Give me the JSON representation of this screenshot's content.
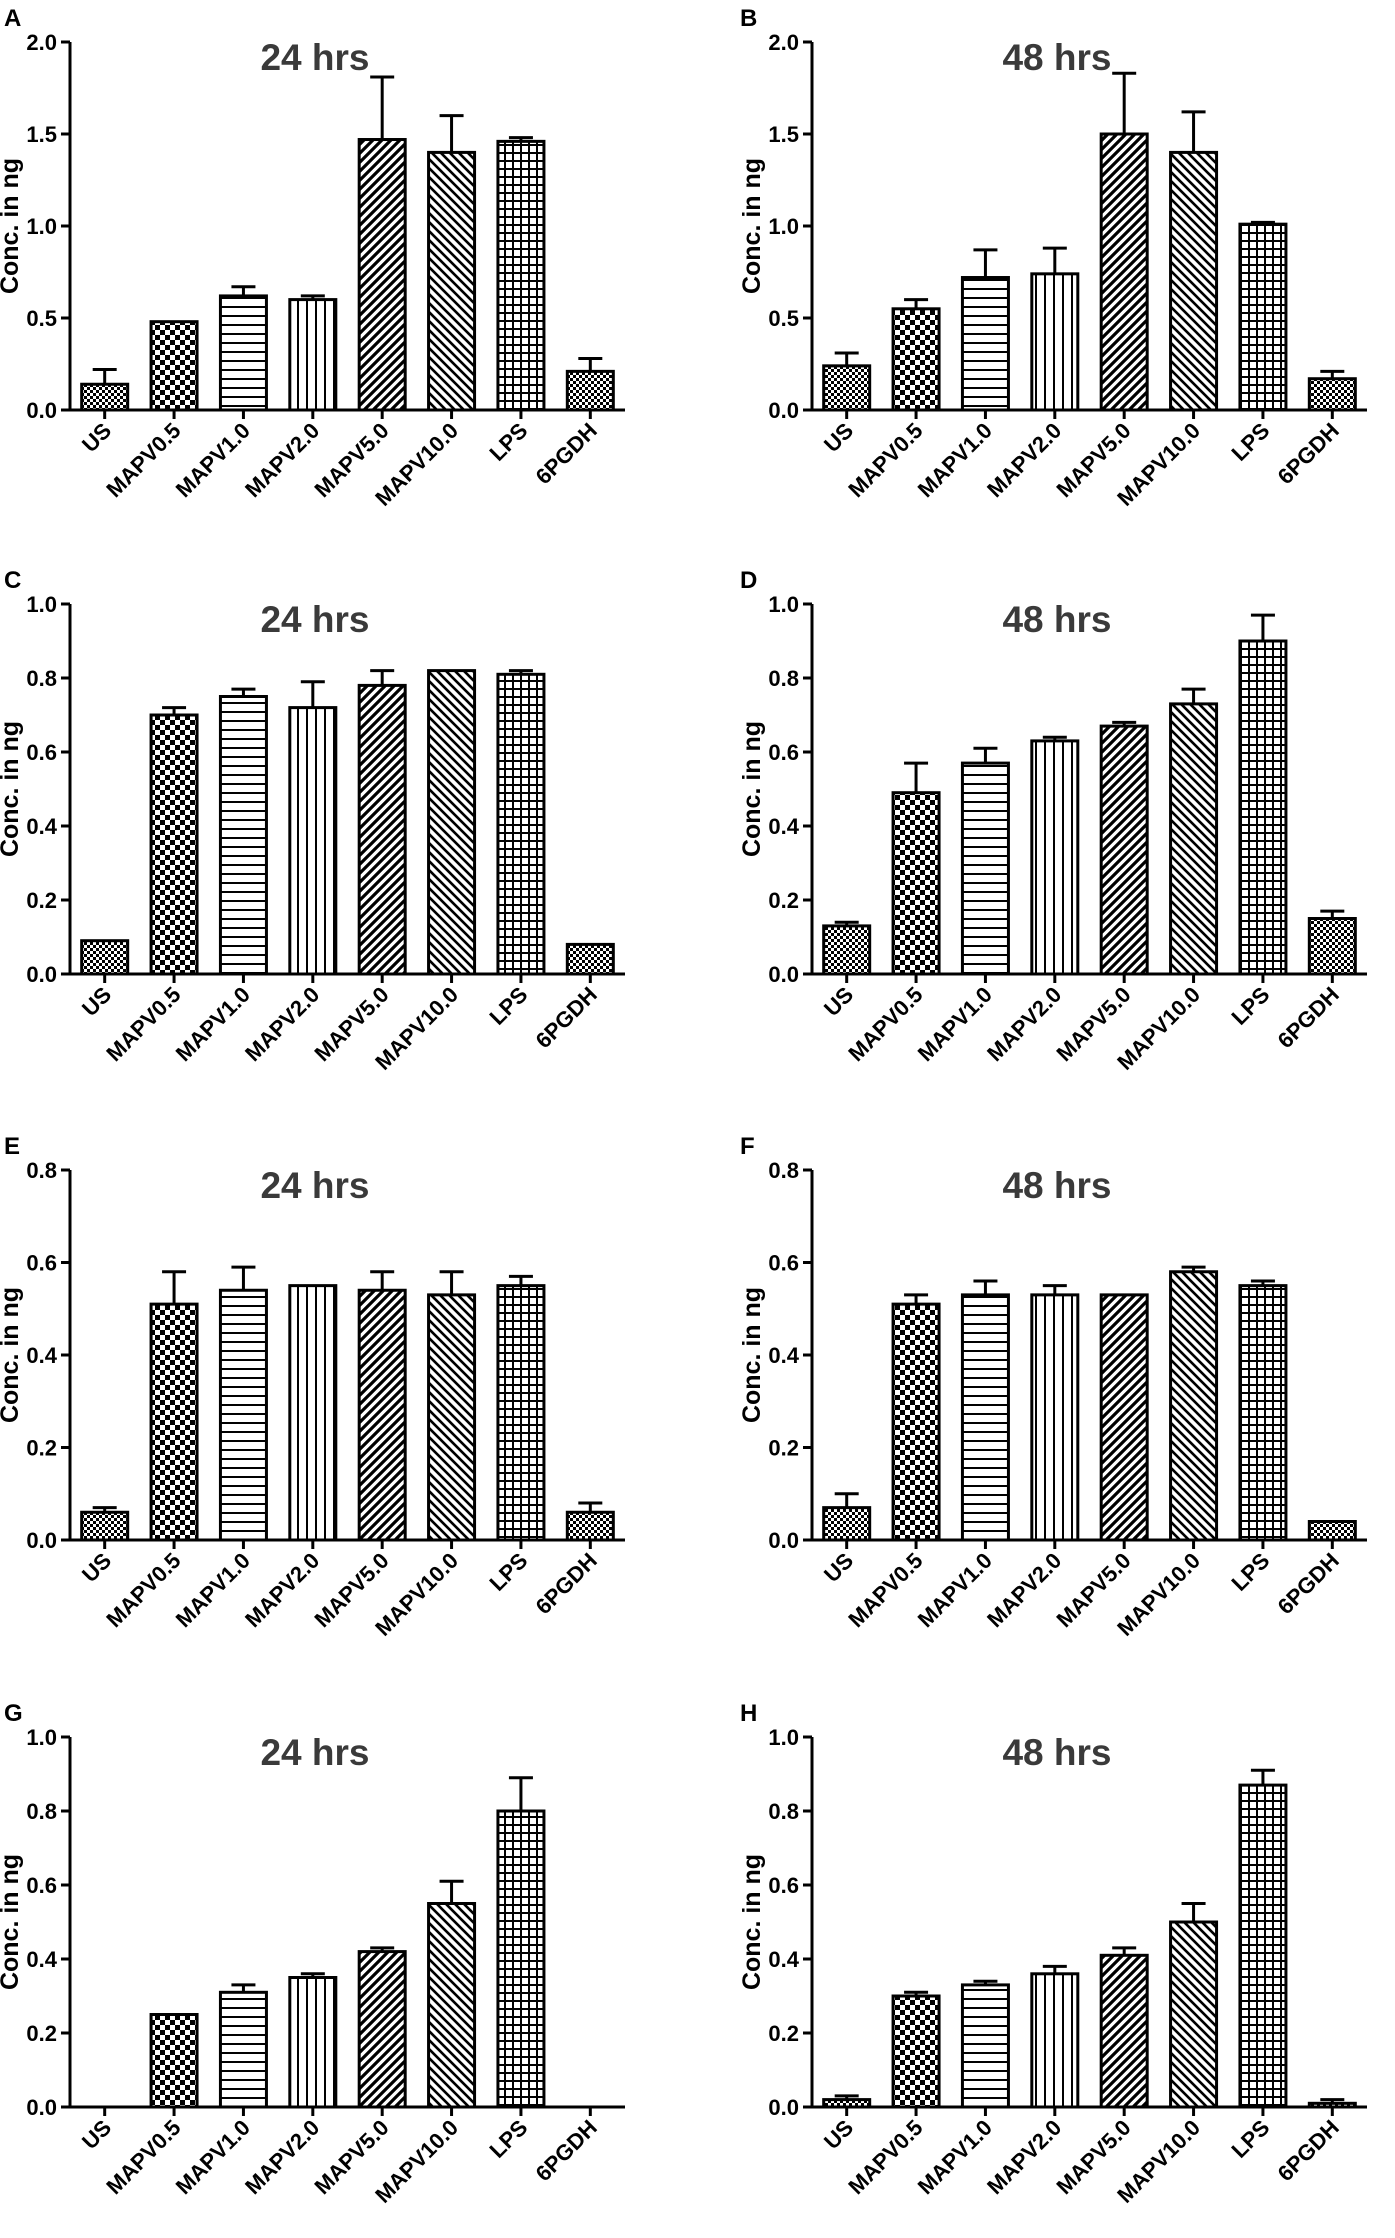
{
  "chart_data": [
    {
      "panel": "A",
      "title": "24 hrs",
      "type": "bar",
      "ylabel": "Conc. in ng",
      "ylim": [
        0,
        2.0
      ],
      "yticks": [
        "0.0",
        "0.5",
        "1.0",
        "1.5",
        "2.0"
      ],
      "categories": [
        "US",
        "MAPV0.5",
        "MAPV1.0",
        "MAPV2.0",
        "MAPV5.0",
        "MAPV10.0",
        "LPS",
        "6PGDH"
      ],
      "values": [
        0.14,
        0.48,
        0.62,
        0.6,
        1.47,
        1.4,
        1.46,
        0.21
      ],
      "errors": [
        0.08,
        0.0,
        0.05,
        0.02,
        0.34,
        0.2,
        0.02,
        0.07
      ]
    },
    {
      "panel": "B",
      "title": "48 hrs",
      "type": "bar",
      "ylabel": "Conc. in ng",
      "ylim": [
        0,
        2.0
      ],
      "yticks": [
        "0.0",
        "0.5",
        "1.0",
        "1.5",
        "2.0"
      ],
      "categories": [
        "US",
        "MAPV0.5",
        "MAPV1.0",
        "MAPV2.0",
        "MAPV5.0",
        "MAPV10.0",
        "LPS",
        "6PGDH"
      ],
      "values": [
        0.24,
        0.55,
        0.72,
        0.74,
        1.5,
        1.4,
        1.01,
        0.17
      ],
      "errors": [
        0.07,
        0.05,
        0.15,
        0.14,
        0.33,
        0.22,
        0.01,
        0.04
      ]
    },
    {
      "panel": "C",
      "title": "24 hrs",
      "type": "bar",
      "ylabel": "Conc. in ng",
      "ylim": [
        0,
        1.0
      ],
      "yticks": [
        "0.0",
        "0.2",
        "0.4",
        "0.6",
        "0.8",
        "1.0"
      ],
      "categories": [
        "US",
        "MAPV0.5",
        "MAPV1.0",
        "MAPV2.0",
        "MAPV5.0",
        "MAPV10.0",
        "LPS",
        "6PGDH"
      ],
      "values": [
        0.09,
        0.7,
        0.75,
        0.72,
        0.78,
        0.82,
        0.81,
        0.08
      ],
      "errors": [
        0.0,
        0.02,
        0.02,
        0.07,
        0.04,
        0.0,
        0.01,
        0.0
      ]
    },
    {
      "panel": "D",
      "title": "48 hrs",
      "type": "bar",
      "ylabel": "Conc. in ng",
      "ylim": [
        0,
        1.0
      ],
      "yticks": [
        "0.0",
        "0.2",
        "0.4",
        "0.6",
        "0.8",
        "1.0"
      ],
      "categories": [
        "US",
        "MAPV0.5",
        "MAPV1.0",
        "MAPV2.0",
        "MAPV5.0",
        "MAPV10.0",
        "LPS",
        "6PGDH"
      ],
      "values": [
        0.13,
        0.49,
        0.57,
        0.63,
        0.67,
        0.73,
        0.9,
        0.15
      ],
      "errors": [
        0.01,
        0.08,
        0.04,
        0.01,
        0.01,
        0.04,
        0.07,
        0.02
      ]
    },
    {
      "panel": "E",
      "title": "24 hrs",
      "type": "bar",
      "ylabel": "Conc. in ng",
      "ylim": [
        0,
        0.8
      ],
      "yticks": [
        "0.0",
        "0.2",
        "0.4",
        "0.6",
        "0.8"
      ],
      "categories": [
        "US",
        "MAPV0.5",
        "MAPV1.0",
        "MAPV2.0",
        "MAPV5.0",
        "MAPV10.0",
        "LPS",
        "6PGDH"
      ],
      "values": [
        0.06,
        0.51,
        0.54,
        0.55,
        0.54,
        0.53,
        0.55,
        0.06
      ],
      "errors": [
        0.01,
        0.07,
        0.05,
        0.0,
        0.04,
        0.05,
        0.02,
        0.02
      ]
    },
    {
      "panel": "F",
      "title": "48 hrs",
      "type": "bar",
      "ylabel": "Conc. in ng",
      "ylim": [
        0,
        0.8
      ],
      "yticks": [
        "0.0",
        "0.2",
        "0.4",
        "0.6",
        "0.8"
      ],
      "categories": [
        "US",
        "MAPV0.5",
        "MAPV1.0",
        "MAPV2.0",
        "MAPV5.0",
        "MAPV10.0",
        "LPS",
        "6PGDH"
      ],
      "values": [
        0.07,
        0.51,
        0.53,
        0.53,
        0.53,
        0.58,
        0.55,
        0.04
      ],
      "errors": [
        0.03,
        0.02,
        0.03,
        0.02,
        0.0,
        0.01,
        0.01,
        0.0
      ]
    },
    {
      "panel": "G",
      "title": "24 hrs",
      "type": "bar",
      "ylabel": "Conc. in ng",
      "ylim": [
        0,
        1.0
      ],
      "yticks": [
        "0.0",
        "0.2",
        "0.4",
        "0.6",
        "0.8",
        "1.0"
      ],
      "categories": [
        "US",
        "MAPV0.5",
        "MAPV1.0",
        "MAPV2.0",
        "MAPV5.0",
        "MAPV10.0",
        "LPS",
        "6PGDH"
      ],
      "values": [
        0.0,
        0.25,
        0.31,
        0.35,
        0.42,
        0.55,
        0.8,
        0.0
      ],
      "errors": [
        0.0,
        0.0,
        0.02,
        0.01,
        0.01,
        0.06,
        0.09,
        0.0
      ]
    },
    {
      "panel": "H",
      "title": "48 hrs",
      "type": "bar",
      "ylabel": "Conc. in ng",
      "ylim": [
        0,
        1.0
      ],
      "yticks": [
        "0.0",
        "0.2",
        "0.4",
        "0.6",
        "0.8",
        "1.0"
      ],
      "categories": [
        "US",
        "MAPV0.5",
        "MAPV1.0",
        "MAPV2.0",
        "MAPV5.0",
        "MAPV10.0",
        "LPS",
        "6PGDH"
      ],
      "values": [
        0.02,
        0.3,
        0.33,
        0.36,
        0.41,
        0.5,
        0.87,
        0.01
      ],
      "errors": [
        0.01,
        0.01,
        0.01,
        0.02,
        0.02,
        0.05,
        0.04,
        0.01
      ]
    }
  ]
}
